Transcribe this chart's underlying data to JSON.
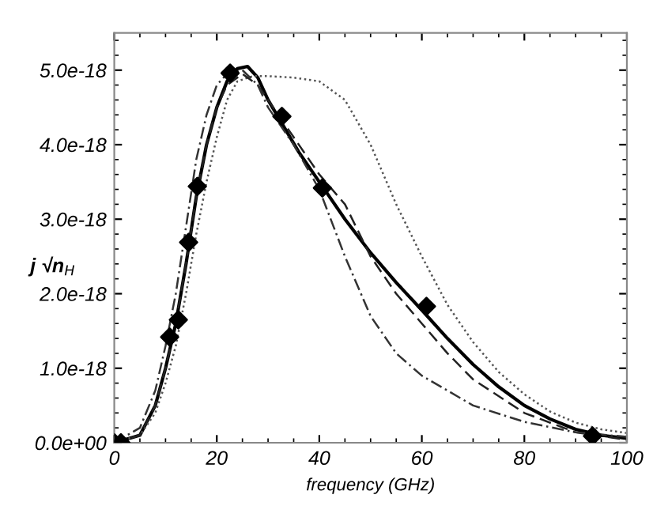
{
  "chart_data": {
    "type": "line",
    "xlabel": "frequency (GHz)",
    "ylabel": "j √n$_{H}$",
    "xlim": [
      0,
      100
    ],
    "xticks": [
      0,
      20,
      40,
      60,
      80,
      100
    ],
    "ylim": [
      0,
      5.5e-18
    ],
    "yticks": [
      {
        "value": 0,
        "label": "0.0e+00"
      },
      {
        "value": 1e-18,
        "label": "1.0e-18"
      },
      {
        "value": 2e-18,
        "label": "2.0e-18"
      },
      {
        "value": 3e-18,
        "label": "3.0e-18"
      },
      {
        "value": 4e-18,
        "label": "4.0e-18"
      },
      {
        "value": 5e-18,
        "label": "5.0e-18"
      }
    ],
    "grid": false,
    "legend": false,
    "series": [
      {
        "line_style": "solid",
        "color": "#000000",
        "x": [
          0,
          5,
          8,
          10,
          12,
          14,
          16,
          18,
          20,
          22,
          24,
          26,
          28,
          30,
          33,
          36,
          40,
          45,
          50,
          55,
          60,
          65,
          70,
          75,
          80,
          85,
          90,
          95,
          100
        ],
        "values": [
          0,
          1e-19,
          5e-19,
          1e-18,
          1.6e-18,
          2.4e-18,
          3.3e-18,
          4e-18,
          4.5e-18,
          4.85e-18,
          5.02e-18,
          5.05e-18,
          4.9e-18,
          4.6e-18,
          4.25e-18,
          3.9e-18,
          3.5e-18,
          3e-18,
          2.55e-18,
          2.15e-18,
          1.78e-18,
          1.4e-18,
          1.05e-18,
          7.5e-19,
          5e-19,
          3.2e-19,
          1.8e-19,
          1e-19,
          6e-20
        ]
      },
      {
        "line_style": "dotted",
        "color": "#555555",
        "x": [
          0,
          5,
          8,
          10,
          12,
          14,
          16,
          18,
          20,
          22,
          24,
          27,
          30,
          35,
          40,
          45,
          50,
          55,
          60,
          65,
          70,
          75,
          80,
          85,
          90,
          95,
          100
        ],
        "values": [
          0,
          1e-19,
          4e-19,
          8e-19,
          1.3e-18,
          2e-18,
          2.8e-18,
          3.5e-18,
          4.1e-18,
          4.6e-18,
          4.85e-18,
          4.92e-18,
          4.92e-18,
          4.9e-18,
          4.85e-18,
          4.6e-18,
          4e-18,
          3.2e-18,
          2.5e-18,
          1.85e-18,
          1.35e-18,
          9.5e-19,
          6.5e-19,
          4.2e-19,
          2.7e-19,
          1.8e-19,
          1.3e-19
        ]
      },
      {
        "line_style": "dashed",
        "color": "#222222",
        "x": [
          0,
          5,
          8,
          10,
          12,
          14,
          16,
          18,
          20,
          22,
          25,
          28,
          30,
          35,
          40,
          45,
          50,
          55,
          60,
          65,
          70,
          80,
          90,
          100
        ],
        "values": [
          0,
          1e-19,
          5e-19,
          1e-18,
          1.6e-18,
          2.4e-18,
          3.3e-18,
          4e-18,
          4.5e-18,
          4.8e-18,
          4.95e-18,
          4.8e-18,
          4.6e-18,
          4.1e-18,
          3.6e-18,
          3.2e-18,
          2.5e-18,
          2e-18,
          1.6e-18,
          1.2e-18,
          8.5e-19,
          4e-19,
          1.4e-19,
          4e-20
        ]
      },
      {
        "line_style": "dashdot",
        "color": "#333333",
        "x": [
          0,
          5,
          8,
          10,
          12,
          14,
          16,
          18,
          20,
          22,
          25,
          28,
          30,
          35,
          40,
          45,
          50,
          55,
          60,
          70,
          80,
          90,
          100
        ],
        "values": [
          0,
          2e-19,
          7e-19,
          1.3e-18,
          2e-18,
          2.9e-18,
          3.8e-18,
          4.4e-18,
          4.8e-18,
          4.95e-18,
          5e-18,
          4.8e-18,
          4.5e-18,
          4e-18,
          3.4e-18,
          2.5e-18,
          1.7e-18,
          1.2e-18,
          9e-19,
          5e-19,
          2.8e-19,
          1.4e-19,
          8e-20
        ]
      },
      {
        "type": "scatter",
        "marker": "diamond",
        "color": "#000000",
        "x": [
          0,
          1.3,
          10.8,
          12.5,
          14.5,
          16.2,
          22.6,
          32.7,
          40.6,
          60.9,
          93.3
        ],
        "values": [
          0,
          0,
          1.42e-18,
          1.65e-18,
          2.69e-18,
          3.44e-18,
          4.96e-18,
          4.38e-18,
          3.42e-18,
          1.83e-18,
          9e-20
        ]
      }
    ]
  }
}
